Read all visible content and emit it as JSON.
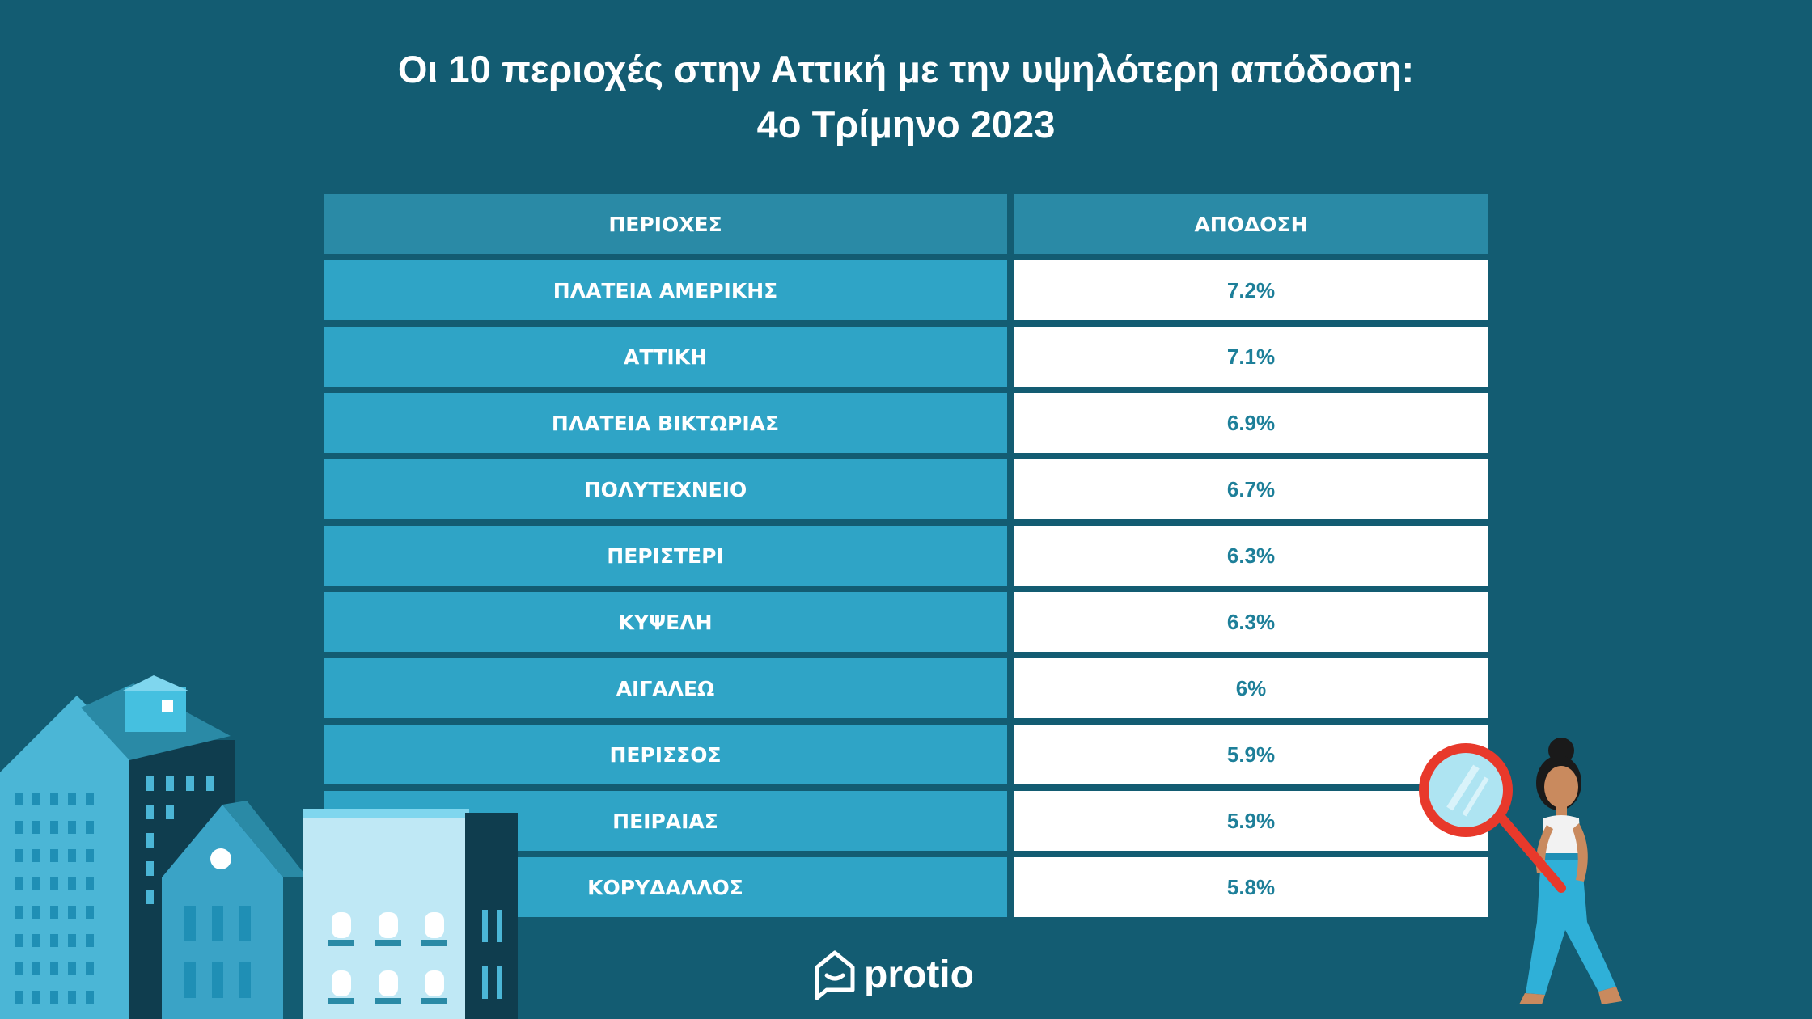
{
  "title": {
    "line1": "Οι 10 περιοχές στην Αττική με την υψηλότερη απόδοση:",
    "line2": "4ο Τρίμηνο 2023"
  },
  "chart_data": {
    "type": "table",
    "columns": [
      "ΠΕΡΙΟΧΕΣ",
      "ΑΠΟΔΟΣΗ"
    ],
    "rows": [
      {
        "area": "ΠΛΑΤΕΙΑ ΑΜΕΡΙΚΗΣ",
        "yield": "7.2%"
      },
      {
        "area": "ΑΤΤΙΚΗ",
        "yield": "7.1%"
      },
      {
        "area": "ΠΛΑΤΕΙΑ ΒΙΚΤΩΡΙΑΣ",
        "yield": "6.9%"
      },
      {
        "area": "ΠΟΛΥΤΕΧΝΕΙΟ",
        "yield": "6.7%"
      },
      {
        "area": "ΠΕΡΙΣΤΕΡΙ",
        "yield": "6.3%"
      },
      {
        "area": "ΚΥΨΕΛΗ",
        "yield": "6.3%"
      },
      {
        "area": "ΑΙΓΑΛΕΩ",
        "yield": "6%"
      },
      {
        "area": "ΠΕΡΙΣΣΟΣ",
        "yield": "5.9%"
      },
      {
        "area": "ΠΕΙΡΑΙΑΣ",
        "yield": "5.9%"
      },
      {
        "area": "ΚΟΡΥΔΑΛΛΟΣ",
        "yield": "5.8%"
      }
    ]
  },
  "logo": {
    "text": "protio",
    "icon": "house-chat-icon"
  },
  "colors": {
    "background": "#135c72",
    "header_cell": "#2a8aa6",
    "area_cell": "#2fa4c6",
    "value_cell": "#ffffff",
    "value_text": "#1d7f99"
  }
}
